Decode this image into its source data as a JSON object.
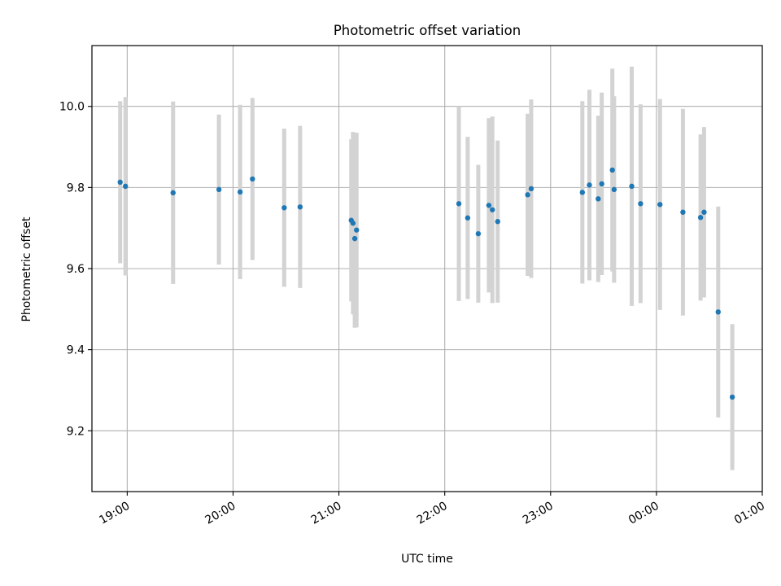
{
  "chart_data": {
    "type": "scatter",
    "title": "Photometric offset variation",
    "xlabel": "UTC time",
    "ylabel": "Photometric offset",
    "x_unit": "UTC time (HH:MM)",
    "xlim": [
      "18:40",
      "01:00"
    ],
    "ylim": [
      9.05,
      10.15
    ],
    "x_ticks": [
      "19:00",
      "20:00",
      "21:00",
      "22:00",
      "23:00",
      "00:00",
      "01:00"
    ],
    "y_ticks": [
      "9.2",
      "9.4",
      "9.6",
      "9.8",
      "10.0"
    ],
    "grid": true,
    "marker_color": "#1f77b4",
    "errorbar_color": "#d3d3d3",
    "points": [
      {
        "x": "18:56",
        "y": 9.813,
        "err": 0.2
      },
      {
        "x": "18:59",
        "y": 9.803,
        "err": 0.22
      },
      {
        "x": "19:26",
        "y": 9.787,
        "err": 0.225
      },
      {
        "x": "19:52",
        "y": 9.795,
        "err": 0.185
      },
      {
        "x": "20:04",
        "y": 9.789,
        "err": 0.215
      },
      {
        "x": "20:11",
        "y": 9.821,
        "err": 0.2
      },
      {
        "x": "20:29",
        "y": 9.75,
        "err": 0.195
      },
      {
        "x": "20:38",
        "y": 9.752,
        "err": 0.2
      },
      {
        "x": "21:07",
        "y": 9.719,
        "err": 0.2
      },
      {
        "x": "21:08",
        "y": 9.712,
        "err": 0.225
      },
      {
        "x": "21:09",
        "y": 9.674,
        "err": 0.22
      },
      {
        "x": "21:10",
        "y": 9.695,
        "err": 0.24
      },
      {
        "x": "22:08",
        "y": 9.76,
        "err": 0.24
      },
      {
        "x": "22:13",
        "y": 9.725,
        "err": 0.2
      },
      {
        "x": "22:19",
        "y": 9.686,
        "err": 0.17
      },
      {
        "x": "22:25",
        "y": 9.756,
        "err": 0.215
      },
      {
        "x": "22:27",
        "y": 9.745,
        "err": 0.23
      },
      {
        "x": "22:30",
        "y": 9.716,
        "err": 0.2
      },
      {
        "x": "22:47",
        "y": 9.782,
        "err": 0.2
      },
      {
        "x": "22:49",
        "y": 9.797,
        "err": 0.22
      },
      {
        "x": "23:18",
        "y": 9.788,
        "err": 0.225
      },
      {
        "x": "23:22",
        "y": 9.806,
        "err": 0.235
      },
      {
        "x": "23:27",
        "y": 9.772,
        "err": 0.205
      },
      {
        "x": "23:29",
        "y": 9.809,
        "err": 0.225
      },
      {
        "x": "23:35",
        "y": 9.843,
        "err": 0.25
      },
      {
        "x": "23:36",
        "y": 9.795,
        "err": 0.23
      },
      {
        "x": "23:46",
        "y": 9.803,
        "err": 0.295
      },
      {
        "x": "23:51",
        "y": 9.76,
        "err": 0.245
      },
      {
        "x": "00:02",
        "y": 9.758,
        "err": 0.26
      },
      {
        "x": "00:15",
        "y": 9.739,
        "err": 0.255
      },
      {
        "x": "00:25",
        "y": 9.726,
        "err": 0.205
      },
      {
        "x": "00:27",
        "y": 9.739,
        "err": 0.21
      },
      {
        "x": "00:35",
        "y": 9.493,
        "err": 0.26
      },
      {
        "x": "00:43",
        "y": 9.283,
        "err": 0.18
      }
    ]
  }
}
